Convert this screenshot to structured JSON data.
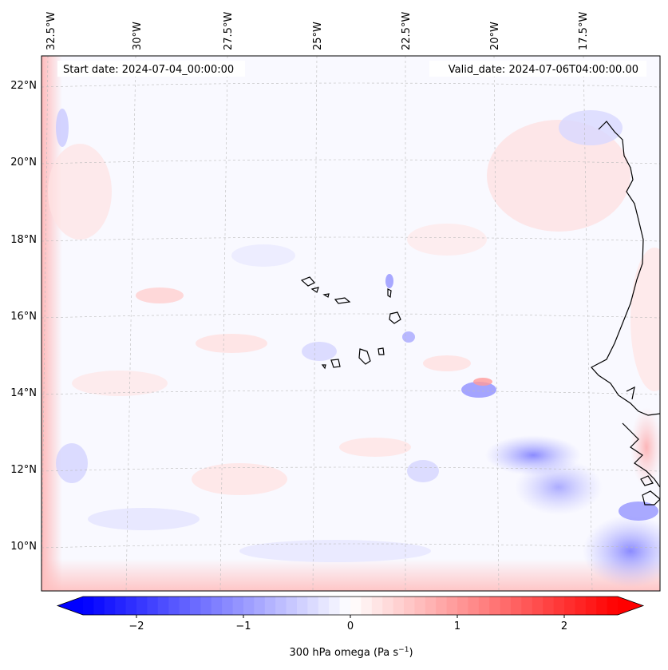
{
  "map": {
    "start_label": "Start date: 2024-07-04_00:00:00",
    "valid_label": "Valid_date: 2024-07-06T04:00:00.00",
    "lon_ticks": [
      "32.5°W",
      "30°W",
      "27.5°W",
      "25°W",
      "22.5°W",
      "20°W",
      "17.5°W"
    ],
    "lat_ticks": [
      "22°N",
      "20°N",
      "18°N",
      "16°N",
      "14°N",
      "12°N",
      "10°N"
    ],
    "field_variable": "300 hPa omega",
    "units": "Pa s-1"
  },
  "colorbar": {
    "label_text": "300 hPa omega (Pa s",
    "label_exp": "−1",
    "label_close": ")",
    "ticks": [
      {
        "value": -2,
        "label": "−2"
      },
      {
        "value": -1,
        "label": "−1"
      },
      {
        "value": 0,
        "label": "0"
      },
      {
        "value": 1,
        "label": "1"
      },
      {
        "value": 2,
        "label": "2"
      }
    ],
    "vmin": -2.5,
    "vmax": 2.5,
    "colormap": "bwr",
    "color_low": "#0000ff",
    "color_mid": "#ffffff",
    "color_high": "#ff0000"
  }
}
